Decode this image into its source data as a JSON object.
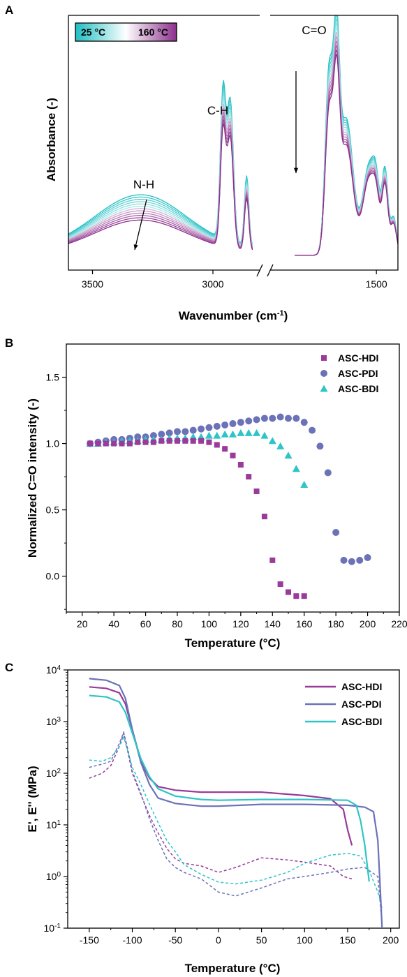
{
  "colors": {
    "teal": "#2ec4c8",
    "purple": "#9a3a9a",
    "periwinkle": "#6b72b8",
    "ink": "#000000"
  },
  "chart_data": [
    {
      "panel": "A",
      "type": "line",
      "xlabel_main": "Wavenumber (cm",
      "xlabel_sup": "-1",
      "xlabel_end": ")",
      "ylabel": "Absorbance (-)",
      "x_ticks": [
        "3500",
        "3000",
        "1500"
      ],
      "axis_break": true,
      "x_segments": [
        [
          3600,
          2800
        ],
        [
          2000,
          1400
        ]
      ],
      "colorbar": {
        "start": "25 °C",
        "end": "160 °C",
        "colors": [
          "#1fbfc3",
          "#ffffff",
          "#8b2f8b"
        ]
      },
      "annotations": [
        "N-H",
        "C-H",
        "C=O"
      ],
      "series_count": 12,
      "series": [
        {
          "temperature": 25,
          "peak_C_O": 1.0
        },
        {
          "temperature": 160,
          "peak_C_O": 0.78
        }
      ]
    },
    {
      "panel": "B",
      "type": "scatter",
      "xlabel": "Temperature (°C)",
      "ylabel": "Normalized C=O intensity (-)",
      "xlim": [
        10,
        220
      ],
      "ylim": [
        -0.27,
        1.75
      ],
      "x_ticks": [
        "20",
        "40",
        "60",
        "80",
        "100",
        "120",
        "140",
        "160",
        "180",
        "200",
        "220"
      ],
      "y_ticks": [
        "0.0",
        "0.5",
        "1.0",
        "1.5"
      ],
      "legend": [
        "ASC-HDI",
        "ASC-PDI",
        "ASC-BDI"
      ],
      "series": [
        {
          "name": "ASC-HDI",
          "marker": "square",
          "x": [
            25,
            30,
            35,
            40,
            45,
            50,
            55,
            60,
            65,
            70,
            75,
            80,
            85,
            90,
            95,
            100,
            105,
            110,
            115,
            120,
            125,
            130,
            135,
            140,
            145,
            150,
            155,
            160
          ],
          "y": [
            1.0,
            1.0,
            1.0,
            1.0,
            1.0,
            1.0,
            1.01,
            1.01,
            1.01,
            1.02,
            1.02,
            1.02,
            1.02,
            1.02,
            1.02,
            1.01,
            0.99,
            0.96,
            0.91,
            0.84,
            0.75,
            0.64,
            0.45,
            0.12,
            -0.06,
            -0.12,
            -0.15,
            -0.15
          ]
        },
        {
          "name": "ASC-PDI",
          "marker": "circle",
          "x": [
            25,
            30,
            35,
            40,
            45,
            50,
            55,
            60,
            65,
            70,
            75,
            80,
            85,
            90,
            95,
            100,
            105,
            110,
            115,
            120,
            125,
            130,
            135,
            140,
            145,
            150,
            155,
            160,
            165,
            170,
            175,
            180,
            185,
            190,
            195,
            200
          ],
          "y": [
            1.0,
            1.01,
            1.02,
            1.03,
            1.03,
            1.04,
            1.05,
            1.05,
            1.06,
            1.07,
            1.08,
            1.09,
            1.09,
            1.1,
            1.11,
            1.12,
            1.13,
            1.14,
            1.15,
            1.16,
            1.17,
            1.18,
            1.19,
            1.19,
            1.2,
            1.19,
            1.19,
            1.16,
            1.1,
            0.98,
            0.78,
            0.33,
            0.12,
            0.11,
            0.12,
            0.14
          ]
        },
        {
          "name": "ASC-BDI",
          "marker": "triangle",
          "x": [
            25,
            30,
            35,
            40,
            45,
            50,
            55,
            60,
            65,
            70,
            75,
            80,
            85,
            90,
            95,
            100,
            105,
            110,
            115,
            120,
            125,
            130,
            135,
            140,
            145,
            150,
            155,
            160
          ],
          "y": [
            1.0,
            1.0,
            1.01,
            1.01,
            1.02,
            1.02,
            1.02,
            1.03,
            1.03,
            1.03,
            1.04,
            1.04,
            1.04,
            1.05,
            1.05,
            1.06,
            1.06,
            1.07,
            1.07,
            1.08,
            1.08,
            1.08,
            1.06,
            1.02,
            0.98,
            0.91,
            0.81,
            0.69
          ]
        }
      ]
    },
    {
      "panel": "C",
      "type": "line",
      "xlabel": "Temperature (°C)",
      "ylabel": "E', E'' (MPa)",
      "xlim": [
        -175,
        210
      ],
      "ylim_log10": [
        -1,
        4
      ],
      "x_ticks": [
        "-150",
        "-100",
        "-50",
        "0",
        "50",
        "100",
        "150",
        "200"
      ],
      "y_ticks": [
        {
          "base": "10",
          "exp": "4"
        },
        {
          "base": "10",
          "exp": "3"
        },
        {
          "base": "10",
          "exp": "2"
        },
        {
          "base": "10",
          "exp": "1"
        },
        {
          "base": "10",
          "exp": "0"
        },
        {
          "base": "10",
          "exp": "-1"
        }
      ],
      "legend": [
        "ASC-HDI",
        "ASC-PDI",
        "ASC-BDI"
      ],
      "series": [
        {
          "name": "ASC-HDI",
          "storage_x": [
            -150,
            -130,
            -115,
            -108,
            -100,
            -90,
            -80,
            -70,
            -50,
            -20,
            0,
            50,
            100,
            130,
            145,
            150,
            155
          ],
          "storage_y": [
            4700,
            4400,
            3600,
            2200,
            700,
            170,
            80,
            55,
            47,
            43,
            43,
            43,
            37,
            32,
            20,
            8,
            4
          ],
          "loss_x": [
            -150,
            -135,
            -125,
            -115,
            -110,
            -105,
            -100,
            -90,
            -80,
            -70,
            -60,
            -50,
            -40,
            -20,
            0,
            20,
            50,
            80,
            100,
            130,
            145,
            155
          ],
          "loss_y": [
            80,
            100,
            140,
            330,
            600,
            250,
            100,
            38,
            15,
            7,
            3.5,
            2.2,
            1.8,
            1.6,
            1.2,
            1.5,
            2.3,
            2.1,
            1.9,
            1.6,
            1.0,
            0.9
          ]
        },
        {
          "name": "ASC-PDI",
          "storage_x": [
            -150,
            -130,
            -115,
            -108,
            -100,
            -90,
            -80,
            -70,
            -50,
            -20,
            0,
            50,
            100,
            150,
            170,
            180,
            185,
            188,
            190
          ],
          "storage_y": [
            6800,
            6300,
            5000,
            2800,
            700,
            160,
            60,
            33,
            26,
            23,
            23,
            25,
            25,
            24,
            22,
            18,
            5,
            0.5,
            0.1
          ],
          "loss_x": [
            -150,
            -135,
            -125,
            -115,
            -110,
            -105,
            -100,
            -90,
            -80,
            -70,
            -60,
            -50,
            -40,
            -20,
            0,
            20,
            50,
            80,
            100,
            130,
            150,
            170,
            185,
            190
          ],
          "loss_y": [
            130,
            150,
            170,
            380,
            620,
            280,
            110,
            40,
            13,
            5,
            2.2,
            1.5,
            1.2,
            0.9,
            0.5,
            0.42,
            0.6,
            0.9,
            1.0,
            1.2,
            1.4,
            1.5,
            1.0,
            0.12
          ]
        },
        {
          "name": "ASC-BDI",
          "storage_x": [
            -150,
            -130,
            -115,
            -108,
            -100,
            -90,
            -80,
            -70,
            -50,
            -20,
            0,
            50,
            100,
            150,
            160,
            165,
            170,
            175
          ],
          "storage_y": [
            3200,
            3000,
            2400,
            1500,
            600,
            190,
            85,
            50,
            36,
            31,
            30,
            31,
            31,
            30,
            24,
            12,
            4,
            0.8
          ],
          "loss_x": [
            -150,
            -135,
            -125,
            -115,
            -110,
            -105,
            -100,
            -90,
            -80,
            -70,
            -60,
            -50,
            -40,
            -20,
            0,
            20,
            50,
            80,
            100,
            130,
            150,
            165,
            175,
            185,
            190
          ],
          "loss_y": [
            180,
            170,
            200,
            330,
            500,
            260,
            130,
            60,
            25,
            11,
            5,
            3,
            1.7,
            1.1,
            0.78,
            0.72,
            0.85,
            1.2,
            1.8,
            2.6,
            2.8,
            2.5,
            1.3,
            0.5,
            0.25
          ]
        }
      ]
    }
  ]
}
